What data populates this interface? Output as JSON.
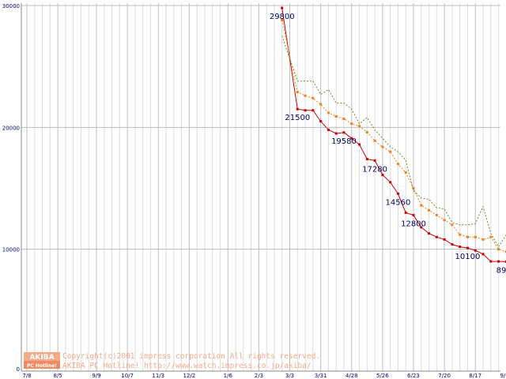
{
  "chart_data": {
    "type": "line",
    "title": "",
    "xlabel": "",
    "ylabel": "",
    "ylim": [
      0,
      30000
    ],
    "grid": true,
    "y_ticks": [
      0,
      10000,
      20000,
      30000
    ],
    "y_tick_labels": [
      "0",
      "10000",
      "20000",
      "30000"
    ],
    "x_ticks": [
      "7/8",
      "8/5",
      "9/9",
      "10/7",
      "11/3",
      "12/2",
      "1/6",
      "2/3",
      "3/3",
      "3/31",
      "4/28",
      "5/26",
      "6/23",
      "7/20",
      "8/17",
      "9/15",
      "9/22"
    ],
    "x_ticks_minor": [
      "7/8",
      "7/15",
      "7/22",
      "7/29",
      "8/5",
      "8/12",
      "8/19",
      "8/26",
      "9/2",
      "9/9",
      "9/16",
      "9/23",
      "9/30",
      "10/7",
      "10/14",
      "10/21",
      "10/28",
      "11/3",
      "11/10",
      "11/17",
      "11/24",
      "12/2",
      "12/9",
      "12/16",
      "12/23",
      "12/30",
      "1/6",
      "1/13",
      "1/20",
      "1/27",
      "2/3",
      "2/10",
      "2/17",
      "2/24",
      "3/3",
      "3/10",
      "3/17",
      "3/24",
      "3/31",
      "4/7",
      "4/14",
      "4/21",
      "4/28",
      "5/5",
      "5/12",
      "5/19",
      "5/26",
      "6/2",
      "6/9",
      "6/16",
      "6/23",
      "6/30",
      "7/6",
      "7/13",
      "7/20",
      "7/27",
      "8/3",
      "8/10",
      "8/17",
      "8/24",
      "8/31",
      "9/7",
      "9/15",
      "9/22"
    ],
    "series": [
      {
        "name": "min",
        "color": "#cc0000",
        "style": "solid",
        "values": [
          [
            33,
            29800
          ],
          [
            35,
            21500
          ],
          [
            36,
            21400
          ],
          [
            37,
            21400
          ],
          [
            38,
            20500
          ],
          [
            39,
            19800
          ],
          [
            40,
            19500
          ],
          [
            41,
            19580
          ],
          [
            42,
            19100
          ],
          [
            43,
            18600
          ],
          [
            44,
            17400
          ],
          [
            45,
            17280
          ],
          [
            46,
            16100
          ],
          [
            47,
            15500
          ],
          [
            48,
            14560
          ],
          [
            49,
            13000
          ],
          [
            50,
            12800
          ],
          [
            51,
            11800
          ],
          [
            52,
            11300
          ],
          [
            53,
            11000
          ],
          [
            54,
            10800
          ],
          [
            55,
            10400
          ],
          [
            56,
            10200
          ],
          [
            57,
            10100
          ],
          [
            58,
            9900
          ],
          [
            59,
            9600
          ],
          [
            60,
            9000
          ],
          [
            61,
            9000
          ],
          [
            62,
            8980
          ],
          [
            63,
            9800
          ]
        ]
      },
      {
        "name": "average",
        "color": "#f08020",
        "style": "dotted",
        "values": [
          [
            33,
            28800
          ],
          [
            35,
            22900
          ],
          [
            36,
            22600
          ],
          [
            37,
            22400
          ],
          [
            38,
            21900
          ],
          [
            39,
            21200
          ],
          [
            40,
            20900
          ],
          [
            41,
            20700
          ],
          [
            42,
            20300
          ],
          [
            43,
            20100
          ],
          [
            44,
            19600
          ],
          [
            45,
            18900
          ],
          [
            46,
            18400
          ],
          [
            47,
            18000
          ],
          [
            48,
            17000
          ],
          [
            49,
            16300
          ],
          [
            50,
            15000
          ],
          [
            51,
            13600
          ],
          [
            52,
            13200
          ],
          [
            53,
            12800
          ],
          [
            54,
            12400
          ],
          [
            55,
            12000
          ],
          [
            56,
            11200
          ],
          [
            57,
            11000
          ],
          [
            58,
            11000
          ],
          [
            59,
            10800
          ],
          [
            60,
            11000
          ],
          [
            61,
            10000
          ],
          [
            62,
            9800
          ],
          [
            63,
            10000
          ],
          [
            64,
            10400
          ],
          [
            65,
            10500
          ]
        ]
      },
      {
        "name": "max",
        "color": "#6b8e23",
        "style": "dotted",
        "values": [
          [
            33,
            27500
          ],
          [
            35,
            23800
          ],
          [
            36,
            23800
          ],
          [
            37,
            23800
          ],
          [
            38,
            22700
          ],
          [
            39,
            23100
          ],
          [
            40,
            22000
          ],
          [
            41,
            22000
          ],
          [
            42,
            21500
          ],
          [
            43,
            20300
          ],
          [
            44,
            20800
          ],
          [
            45,
            19800
          ],
          [
            46,
            19100
          ],
          [
            47,
            18400
          ],
          [
            48,
            18000
          ],
          [
            49,
            17300
          ],
          [
            50,
            14800
          ],
          [
            51,
            14200
          ],
          [
            52,
            14100
          ],
          [
            53,
            13400
          ],
          [
            54,
            13300
          ],
          [
            55,
            12200
          ],
          [
            56,
            12000
          ],
          [
            57,
            12000
          ],
          [
            58,
            12100
          ],
          [
            59,
            13500
          ],
          [
            60,
            11300
          ],
          [
            61,
            10200
          ],
          [
            62,
            11200
          ],
          [
            63,
            11900
          ],
          [
            64,
            10800
          ]
        ]
      }
    ],
    "data_labels": [
      {
        "x": 33,
        "y": 29800,
        "text": "29800"
      },
      {
        "x": 35,
        "y": 21500,
        "text": "21500"
      },
      {
        "x": 41,
        "y": 19580,
        "text": "19580"
      },
      {
        "x": 45,
        "y": 17280,
        "text": "17280"
      },
      {
        "x": 48,
        "y": 14560,
        "text": "14560"
      },
      {
        "x": 50,
        "y": 12800,
        "text": "12800"
      },
      {
        "x": 57,
        "y": 10100,
        "text": "10100"
      },
      {
        "x": 62,
        "y": 8980,
        "text": "8980"
      }
    ]
  },
  "watermark": {
    "logo_top": "AKIBA",
    "logo_bottom": "PC Hotline!",
    "line1": "Copyright(c)2001 impress corporation All rights reserved.",
    "line2": "AKIBA PC Hotline!  http://www.watch.impress.co.jp/akiba/"
  }
}
